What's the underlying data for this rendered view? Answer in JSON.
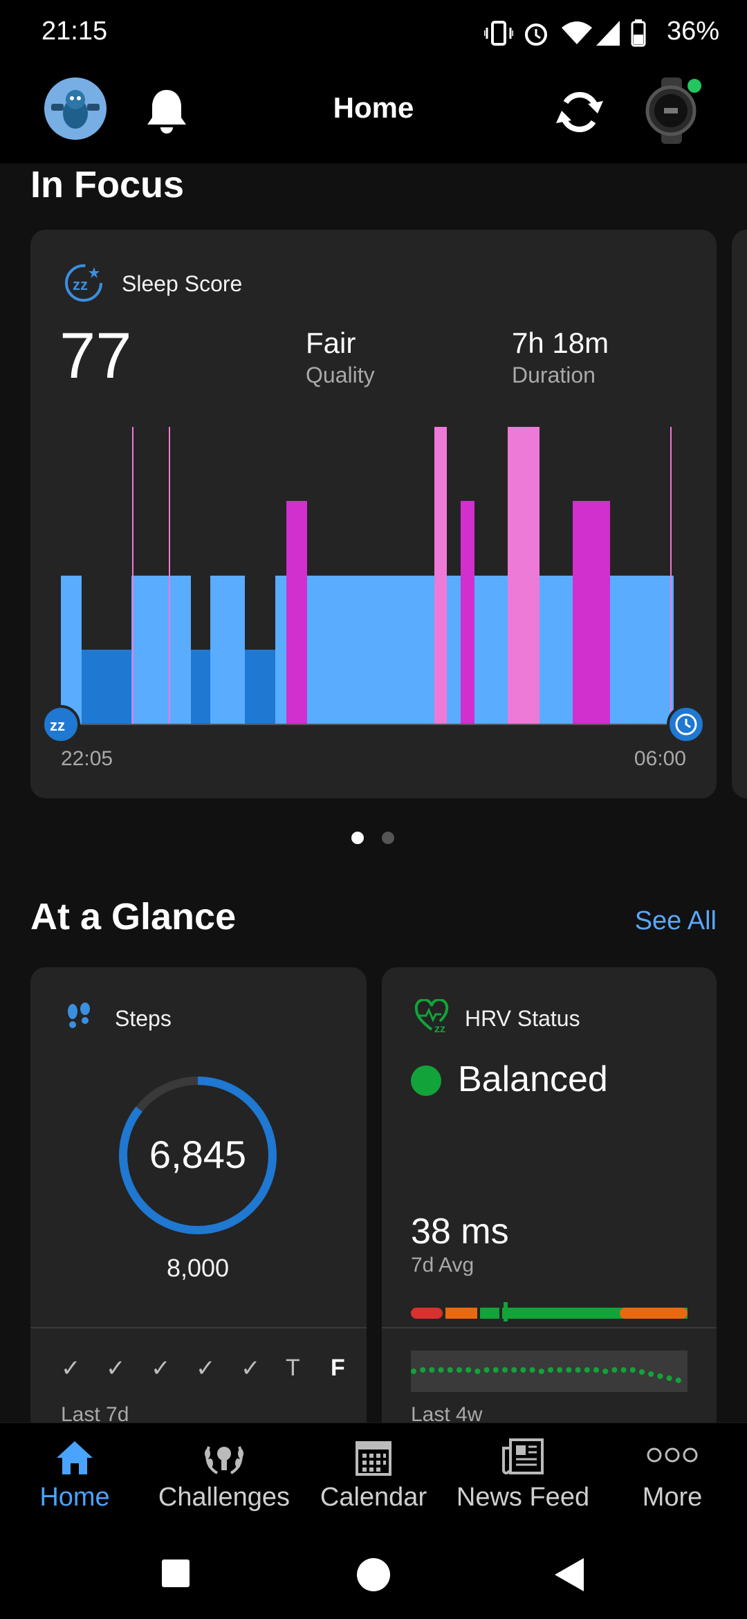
{
  "status_bar": {
    "time": "21:15",
    "battery": "36%"
  },
  "app_bar": {
    "title": "Home"
  },
  "in_focus": {
    "section_title": "In Focus",
    "sleep_card": {
      "title": "Sleep Score",
      "score": "77",
      "quality_value": "Fair",
      "quality_label": "Quality",
      "duration_value": "7h 18m",
      "duration_label": "Duration",
      "start_time": "22:05",
      "end_time": "06:00"
    },
    "page_indicator": {
      "count": 2,
      "active": 1
    }
  },
  "at_a_glance": {
    "section_title": "At a Glance",
    "see_all": "See All",
    "steps_card": {
      "title": "Steps",
      "value": "6,845",
      "goal": "8,000",
      "progress": 0.856,
      "days": [
        "✓",
        "✓",
        "✓",
        "✓",
        "✓",
        "T",
        "F"
      ],
      "footer": "Last 7d"
    },
    "hrv_card": {
      "title": "HRV Status",
      "status": "Balanced",
      "value": "38 ms",
      "value_label": "7d Avg",
      "footer": "Last 4w"
    }
  },
  "bottom_nav": {
    "items": [
      {
        "label": "Home",
        "icon": "home-icon"
      },
      {
        "label": "Challenges",
        "icon": "laurel-icon"
      },
      {
        "label": "Calendar",
        "icon": "calendar-icon"
      },
      {
        "label": "News Feed",
        "icon": "newspaper-icon"
      },
      {
        "label": "More",
        "icon": "more-icon"
      }
    ]
  },
  "colors": {
    "accent": "#4aa3ff",
    "sleep_light": "#5aacff",
    "sleep_deep": "#1f78d1",
    "sleep_rem": "#d22fcf",
    "sleep_awake": "#ee7ad8",
    "hrv_green": "#12a33a",
    "hrv_orange": "#e8690f",
    "hrv_red": "#d93030"
  }
}
